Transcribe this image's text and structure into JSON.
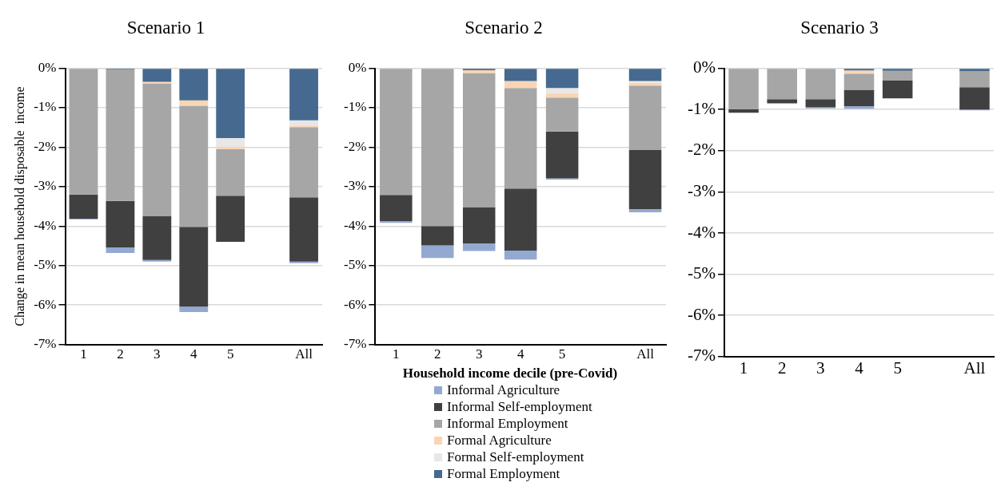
{
  "chart_data": [
    {
      "type": "bar",
      "title": "Scenario 1",
      "ylabel": "Change in mean household disposable  income",
      "categories": [
        "1",
        "2",
        "3",
        "4",
        "5",
        null,
        "All"
      ],
      "stacked": true,
      "grid": "y",
      "ylim": [
        -7,
        0
      ],
      "yticks": [
        {
          "value": 0,
          "label": "0%"
        },
        {
          "value": -1,
          "label": "-1%"
        },
        {
          "value": -2,
          "label": "-2%"
        },
        {
          "value": -3,
          "label": "-3%"
        },
        {
          "value": -4,
          "label": "-4%"
        },
        {
          "value": -5,
          "label": "-5%"
        },
        {
          "value": -6,
          "label": "-6%"
        },
        {
          "value": -7,
          "label": "-7%"
        }
      ],
      "series": [
        {
          "color": "#46698f",
          "values": [
            0,
            -0.03,
            -0.34,
            -0.81,
            -1.77,
            null,
            -1.32
          ]
        },
        {
          "color": "#e7e7e7",
          "values": [
            0,
            0,
            0,
            0,
            -0.22,
            null,
            -0.13
          ]
        },
        {
          "color": "#fad5b5",
          "values": [
            0,
            0,
            -0.04,
            -0.14,
            -0.06,
            null,
            -0.04
          ]
        },
        {
          "color": "#a6a6a6",
          "values": [
            -3.2,
            -3.33,
            -3.36,
            -3.07,
            -1.18,
            null,
            -1.78
          ]
        },
        {
          "color": "#404040",
          "values": [
            -0.61,
            -1.18,
            -1.12,
            -2.02,
            -1.17,
            null,
            -1.63
          ]
        },
        {
          "color": "#93a9d1",
          "values": [
            -0.02,
            -0.14,
            -0.04,
            -0.14,
            0,
            null,
            -0.04
          ]
        }
      ]
    },
    {
      "type": "bar",
      "title": "Scenario 2",
      "xlabel": "Household income decile (pre-Covid)",
      "categories": [
        "1",
        "2",
        "3",
        "4",
        "5",
        null,
        "All"
      ],
      "stacked": true,
      "grid": "y",
      "legend": "bottom",
      "ylim": [
        -7,
        0
      ],
      "yticks": [
        {
          "value": 0,
          "label": "0%"
        },
        {
          "value": -1,
          "label": "-1%"
        },
        {
          "value": -2,
          "label": "-2%"
        },
        {
          "value": -3,
          "label": "-3%"
        },
        {
          "value": -4,
          "label": "-4%"
        },
        {
          "value": -5,
          "label": "-5%"
        },
        {
          "value": -6,
          "label": "-6%"
        },
        {
          "value": -7,
          "label": "-7%"
        }
      ],
      "series": [
        {
          "name": "Formal Employment",
          "color": "#46698f",
          "values": [
            0,
            0,
            -0.05,
            -0.32,
            -0.5,
            null,
            -0.32
          ]
        },
        {
          "name": "Formal Self-employment",
          "color": "#e7e7e7",
          "values": [
            0,
            0,
            0,
            0,
            -0.13,
            null,
            -0.04
          ]
        },
        {
          "name": "Formal Agriculture",
          "color": "#fad5b5",
          "values": [
            0,
            0,
            -0.07,
            -0.18,
            -0.11,
            null,
            -0.08
          ]
        },
        {
          "name": "Informal Employment",
          "color": "#a6a6a6",
          "values": [
            -3.21,
            -4.0,
            -3.4,
            -2.55,
            -0.86,
            null,
            -1.63
          ]
        },
        {
          "name": "Informal Self-employment",
          "color": "#404040",
          "values": [
            -0.66,
            -0.49,
            -0.92,
            -1.57,
            -1.19,
            null,
            -1.5
          ]
        },
        {
          "name": "Informal Agriculture",
          "color": "#93a9d1",
          "values": [
            -0.05,
            -0.32,
            -0.19,
            -0.23,
            -0.03,
            null,
            -0.08
          ]
        }
      ]
    },
    {
      "type": "bar",
      "title": "Scenario 3",
      "categories": [
        "1",
        "2",
        "3",
        "4",
        "5",
        null,
        "All"
      ],
      "stacked": true,
      "grid": "y",
      "ylim": [
        -7,
        0
      ],
      "yticks": [
        {
          "value": 0,
          "label": "0%"
        },
        {
          "value": -1,
          "label": "-1%"
        },
        {
          "value": -2,
          "label": "-2%"
        },
        {
          "value": -3,
          "label": "-3%"
        },
        {
          "value": -4,
          "label": "-4%"
        },
        {
          "value": -5,
          "label": "-5%"
        },
        {
          "value": -6,
          "label": "-6%"
        },
        {
          "value": -7,
          "label": "-7%"
        }
      ],
      "series": [
        {
          "color": "#46698f",
          "values": [
            0,
            0,
            0,
            -0.05,
            -0.06,
            null,
            -0.07
          ]
        },
        {
          "color": "#e7e7e7",
          "values": [
            0,
            0,
            0,
            0,
            0,
            null,
            0
          ]
        },
        {
          "color": "#fad5b5",
          "values": [
            0,
            0,
            0,
            -0.08,
            0,
            null,
            0
          ]
        },
        {
          "color": "#a6a6a6",
          "values": [
            -0.99,
            -0.75,
            -0.75,
            -0.39,
            -0.24,
            null,
            -0.39
          ]
        },
        {
          "color": "#404040",
          "values": [
            -0.09,
            -0.1,
            -0.2,
            -0.4,
            -0.43,
            null,
            -0.54
          ]
        },
        {
          "color": "#93a9d1",
          "values": [
            0,
            0,
            -0.02,
            -0.06,
            0,
            null,
            -0.02
          ]
        }
      ]
    }
  ]
}
